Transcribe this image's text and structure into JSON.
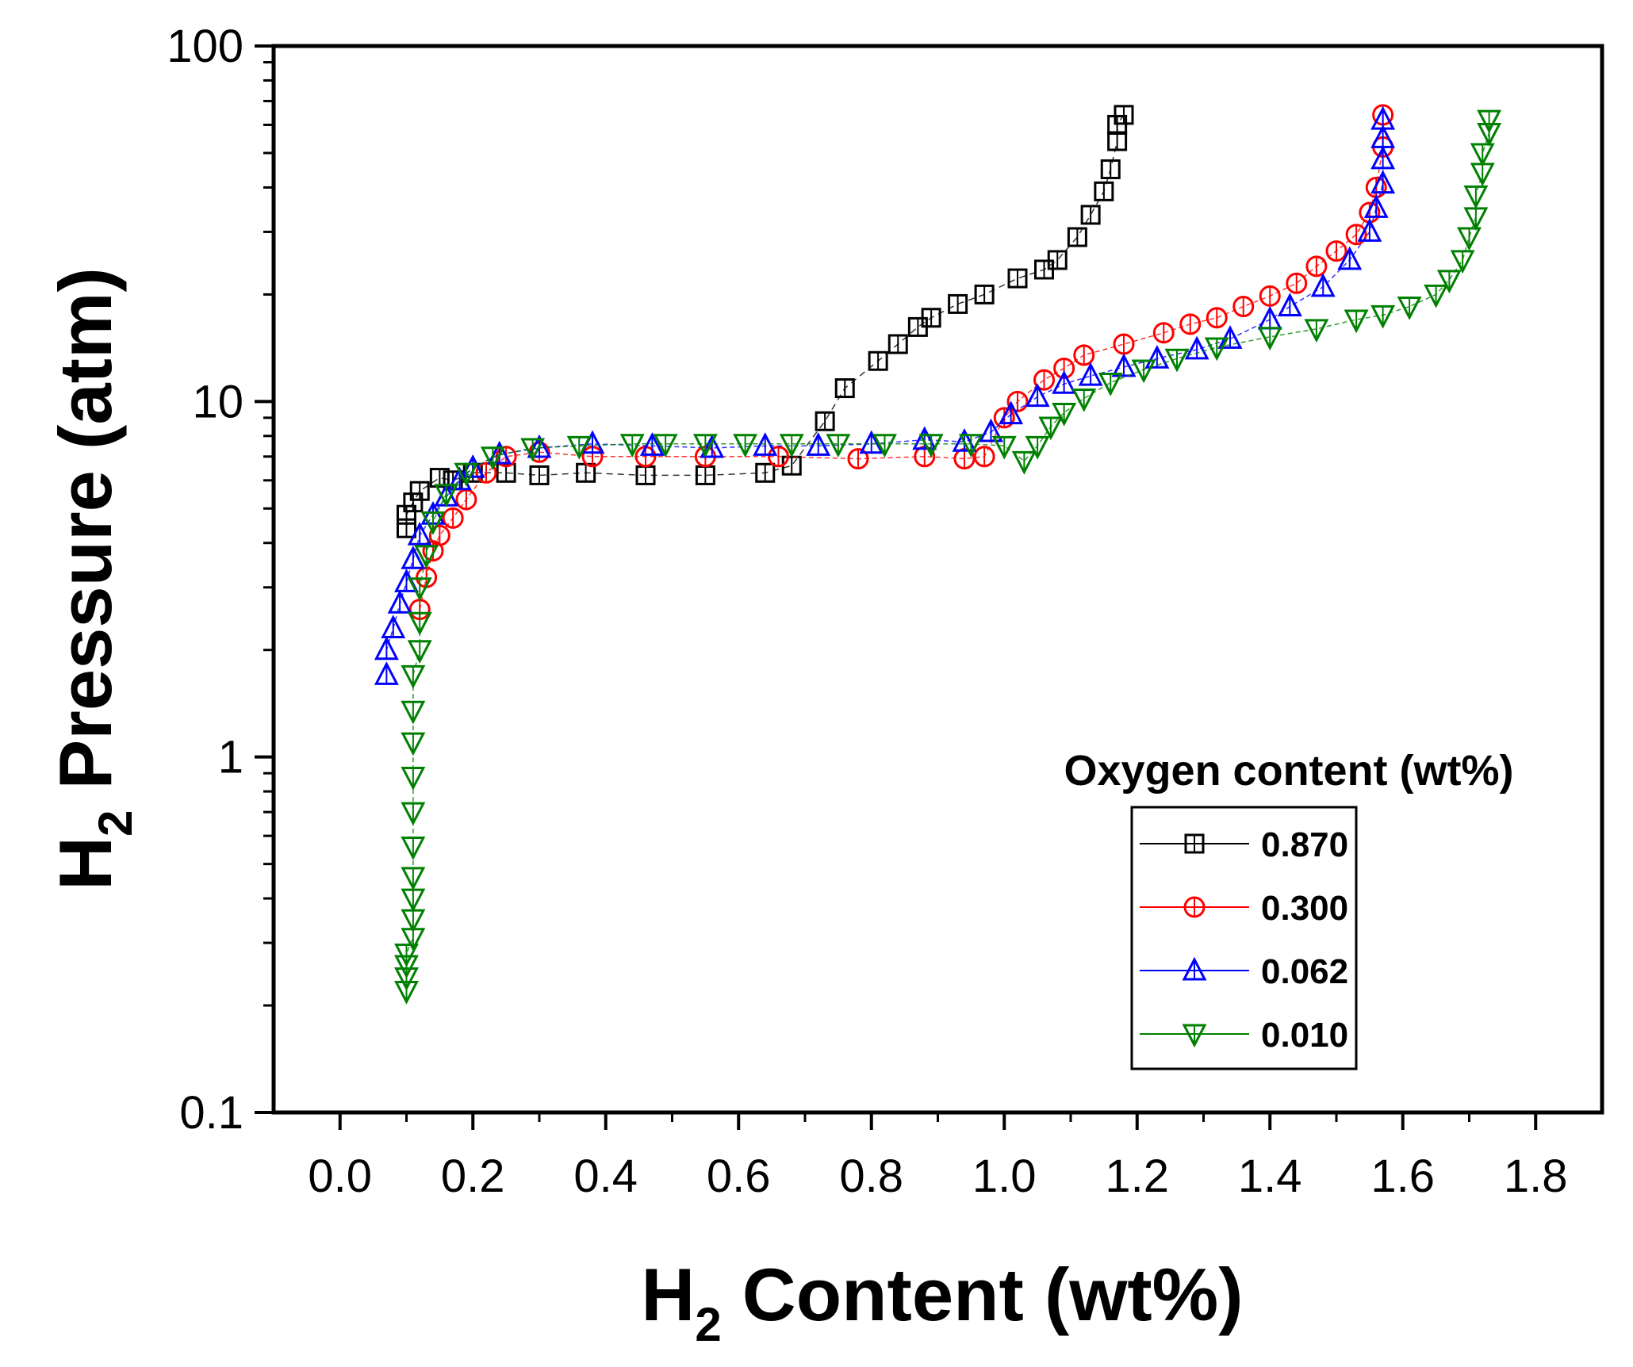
{
  "chart_data": {
    "type": "scatter",
    "xlabel": "H",
    "xlabel_sub": "2",
    "xlabel_rest": " Content (wt%)",
    "ylabel": "H",
    "ylabel_sub": "2",
    "ylabel_rest": " Pressure (atm)",
    "xlim": [
      -0.1,
      1.9
    ],
    "ylim": [
      0.1,
      100
    ],
    "yscale": "log",
    "x_ticks": [
      "0.0",
      "0.2",
      "0.4",
      "0.6",
      "0.8",
      "1.0",
      "1.2",
      "1.4",
      "1.6",
      "1.8"
    ],
    "y_ticks": [
      "0.1",
      "1",
      "10",
      "100"
    ],
    "legend_title": "Oxygen content (wt%)",
    "legend_position": "bottom-right",
    "series": [
      {
        "name": "0.870",
        "marker": "square",
        "color": "#000000",
        "points": [
          [
            0.1,
            4.4
          ],
          [
            0.1,
            4.8
          ],
          [
            0.11,
            5.2
          ],
          [
            0.12,
            5.6
          ],
          [
            0.15,
            6.1
          ],
          [
            0.17,
            6.0
          ],
          [
            0.2,
            6.3
          ],
          [
            0.25,
            6.3
          ],
          [
            0.3,
            6.2
          ],
          [
            0.37,
            6.3
          ],
          [
            0.46,
            6.2
          ],
          [
            0.55,
            6.2
          ],
          [
            0.64,
            6.3
          ],
          [
            0.68,
            6.6
          ],
          [
            0.73,
            8.8
          ],
          [
            0.76,
            10.9
          ],
          [
            0.81,
            13.0
          ],
          [
            0.84,
            14.5
          ],
          [
            0.87,
            16.2
          ],
          [
            0.89,
            17.2
          ],
          [
            0.93,
            18.8
          ],
          [
            0.97,
            20.0
          ],
          [
            1.02,
            22.2
          ],
          [
            1.06,
            23.5
          ],
          [
            1.08,
            25.0
          ],
          [
            1.11,
            29.0
          ],
          [
            1.13,
            33.5
          ],
          [
            1.15,
            39.0
          ],
          [
            1.16,
            45.0
          ],
          [
            1.17,
            54.0
          ],
          [
            1.17,
            60.0
          ],
          [
            1.18,
            64.0
          ]
        ]
      },
      {
        "name": "0.300",
        "marker": "circle",
        "color": "#ff0000",
        "points": [
          [
            0.12,
            2.6
          ],
          [
            0.13,
            3.2
          ],
          [
            0.14,
            3.8
          ],
          [
            0.15,
            4.2
          ],
          [
            0.17,
            4.7
          ],
          [
            0.19,
            5.3
          ],
          [
            0.22,
            6.3
          ],
          [
            0.25,
            7.0
          ],
          [
            0.3,
            7.2
          ],
          [
            0.38,
            7.0
          ],
          [
            0.46,
            7.0
          ],
          [
            0.55,
            7.0
          ],
          [
            0.66,
            7.0
          ],
          [
            0.78,
            6.9
          ],
          [
            0.88,
            7.0
          ],
          [
            0.94,
            6.9
          ],
          [
            0.97,
            7.0
          ],
          [
            1.0,
            9.0
          ],
          [
            1.02,
            10.0
          ],
          [
            1.06,
            11.5
          ],
          [
            1.09,
            12.4
          ],
          [
            1.12,
            13.5
          ],
          [
            1.18,
            14.5
          ],
          [
            1.24,
            15.6
          ],
          [
            1.28,
            16.5
          ],
          [
            1.32,
            17.2
          ],
          [
            1.36,
            18.5
          ],
          [
            1.4,
            19.8
          ],
          [
            1.44,
            21.5
          ],
          [
            1.47,
            24.0
          ],
          [
            1.5,
            26.5
          ],
          [
            1.53,
            29.5
          ],
          [
            1.55,
            34.0
          ],
          [
            1.56,
            40.0
          ],
          [
            1.57,
            52.0
          ],
          [
            1.57,
            64.0
          ]
        ]
      },
      {
        "name": "0.062",
        "marker": "triangle-up",
        "color": "#0000ff",
        "points": [
          [
            0.07,
            1.7
          ],
          [
            0.07,
            2.0
          ],
          [
            0.08,
            2.3
          ],
          [
            0.09,
            2.7
          ],
          [
            0.1,
            3.1
          ],
          [
            0.11,
            3.6
          ],
          [
            0.12,
            4.2
          ],
          [
            0.14,
            4.8
          ],
          [
            0.16,
            5.4
          ],
          [
            0.18,
            6.0
          ],
          [
            0.2,
            6.5
          ],
          [
            0.24,
            7.1
          ],
          [
            0.3,
            7.4
          ],
          [
            0.38,
            7.6
          ],
          [
            0.47,
            7.5
          ],
          [
            0.56,
            7.4
          ],
          [
            0.64,
            7.5
          ],
          [
            0.72,
            7.5
          ],
          [
            0.8,
            7.6
          ],
          [
            0.88,
            7.8
          ],
          [
            0.94,
            7.7
          ],
          [
            0.98,
            8.2
          ],
          [
            1.01,
            9.2
          ],
          [
            1.05,
            10.3
          ],
          [
            1.09,
            11.2
          ],
          [
            1.13,
            11.8
          ],
          [
            1.18,
            12.5
          ],
          [
            1.23,
            13.2
          ],
          [
            1.29,
            14.0
          ],
          [
            1.34,
            15.0
          ],
          [
            1.4,
            17.0
          ],
          [
            1.43,
            18.5
          ],
          [
            1.48,
            21.0
          ],
          [
            1.52,
            25.0
          ],
          [
            1.55,
            30.0
          ],
          [
            1.56,
            35.0
          ],
          [
            1.57,
            41.0
          ],
          [
            1.57,
            48.0
          ],
          [
            1.57,
            55.0
          ],
          [
            1.57,
            62.0
          ]
        ]
      },
      {
        "name": "0.010",
        "marker": "triangle-down",
        "color": "#008000",
        "points": [
          [
            0.1,
            0.22
          ],
          [
            0.1,
            0.24
          ],
          [
            0.1,
            0.26
          ],
          [
            0.1,
            0.28
          ],
          [
            0.11,
            0.31
          ],
          [
            0.11,
            0.35
          ],
          [
            0.11,
            0.4
          ],
          [
            0.11,
            0.46
          ],
          [
            0.11,
            0.56
          ],
          [
            0.11,
            0.7
          ],
          [
            0.11,
            0.88
          ],
          [
            0.11,
            1.1
          ],
          [
            0.11,
            1.35
          ],
          [
            0.11,
            1.7
          ],
          [
            0.12,
            2.0
          ],
          [
            0.12,
            2.4
          ],
          [
            0.12,
            3.0
          ],
          [
            0.13,
            3.7
          ],
          [
            0.14,
            4.6
          ],
          [
            0.16,
            5.5
          ],
          [
            0.19,
            6.3
          ],
          [
            0.23,
            7.0
          ],
          [
            0.29,
            7.4
          ],
          [
            0.36,
            7.5
          ],
          [
            0.44,
            7.6
          ],
          [
            0.49,
            7.6
          ],
          [
            0.55,
            7.6
          ],
          [
            0.61,
            7.6
          ],
          [
            0.68,
            7.6
          ],
          [
            0.75,
            7.6
          ],
          [
            0.82,
            7.6
          ],
          [
            0.89,
            7.6
          ],
          [
            0.95,
            7.6
          ],
          [
            1.0,
            7.5
          ],
          [
            1.03,
            6.8
          ],
          [
            1.05,
            7.5
          ],
          [
            1.07,
            8.5
          ],
          [
            1.09,
            9.3
          ],
          [
            1.12,
            10.2
          ],
          [
            1.16,
            11.3
          ],
          [
            1.21,
            12.3
          ],
          [
            1.26,
            13.2
          ],
          [
            1.32,
            14.2
          ],
          [
            1.4,
            15.2
          ],
          [
            1.47,
            16.0
          ],
          [
            1.53,
            17.0
          ],
          [
            1.57,
            17.5
          ],
          [
            1.61,
            18.5
          ],
          [
            1.65,
            20.0
          ],
          [
            1.67,
            22.0
          ],
          [
            1.69,
            25.0
          ],
          [
            1.7,
            29.0
          ],
          [
            1.71,
            33.0
          ],
          [
            1.71,
            38.0
          ],
          [
            1.72,
            44.0
          ],
          [
            1.72,
            50.0
          ],
          [
            1.73,
            57.0
          ],
          [
            1.73,
            62.0
          ]
        ]
      }
    ]
  }
}
